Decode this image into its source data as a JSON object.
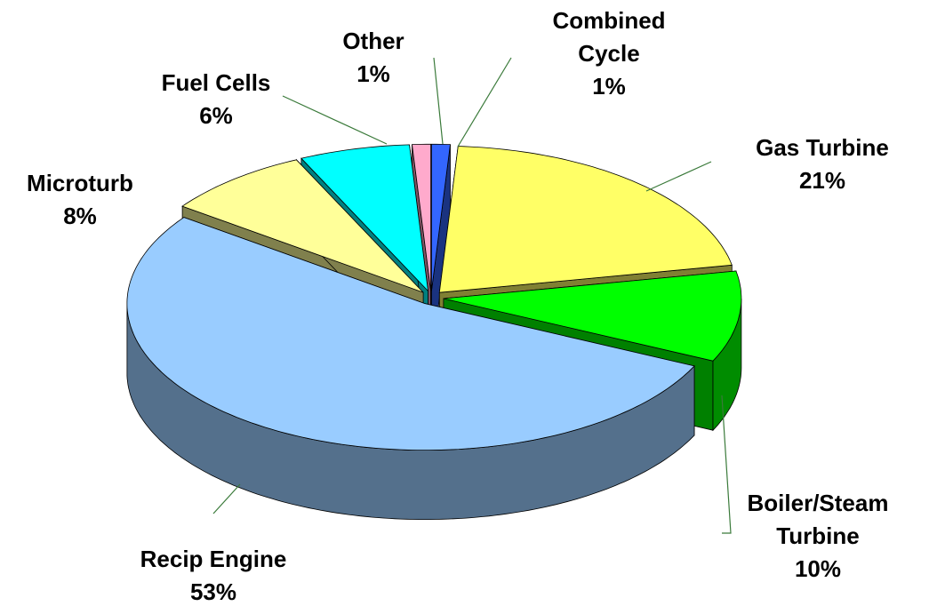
{
  "chart_data": {
    "type": "pie",
    "categories": [
      "Combined\nCycle",
      "Gas Turbine",
      "Boiler/Steam\nTurbine",
      "Recip Engine",
      "Microturb",
      "Fuel Cells",
      "Other"
    ],
    "values": [
      1,
      21,
      10,
      53,
      8,
      6,
      1
    ],
    "value_labels": [
      "1%",
      "21%",
      "10%",
      "53%",
      "8%",
      "6%",
      "1%"
    ],
    "colors": [
      "#3366ff",
      "#ffff66",
      "#00ff00",
      "#99ccff",
      "#ffff99",
      "#00ffff",
      "#ffaacc"
    ]
  }
}
